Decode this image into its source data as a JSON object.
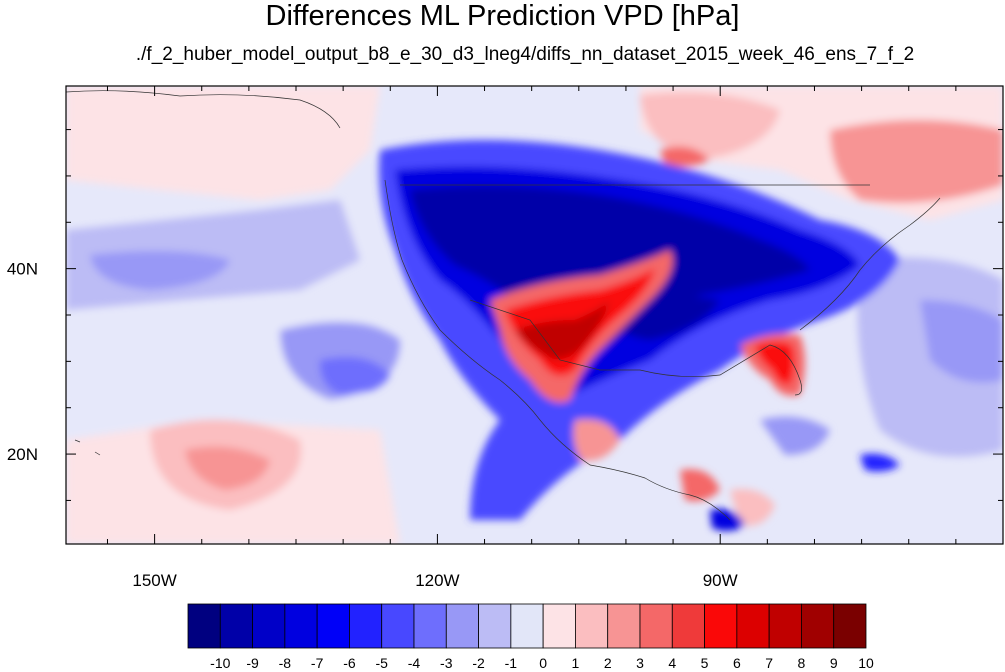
{
  "title": "Differences ML Prediction VPD [hPa]",
  "subtitle": "./f_2_huber_model_output_b8_e_30_d3_lneg4/diffs_nn_dataset_2015_week_46_ens_7_f_2",
  "axes": {
    "lat_ticks": [
      {
        "value": 40,
        "label": "40N"
      },
      {
        "value": 20,
        "label": "20N"
      }
    ],
    "lon_ticks": [
      {
        "value": -150,
        "label": "150W"
      },
      {
        "value": -120,
        "label": "120W"
      },
      {
        "value": -90,
        "label": "90W"
      }
    ],
    "lon_range": [
      -159.4,
      -60.0
    ],
    "lat_range": [
      10.3,
      59.7
    ]
  },
  "colorbar": {
    "labels": [
      "-10",
      "-9",
      "-8",
      "-7",
      "-6",
      "-5",
      "-4",
      "-3",
      "-2",
      "-1",
      "0",
      "1",
      "2",
      "3",
      "4",
      "5",
      "6",
      "7",
      "8",
      "9",
      "10"
    ],
    "colors": [
      "#000080",
      "#0000a8",
      "#0000c8",
      "#0000e0",
      "#0000f8",
      "#2222ff",
      "#4848ff",
      "#6e6efd",
      "#9898f6",
      "#bcbcf5",
      "#e2e6f8",
      "#fde3e6",
      "#fbbec0",
      "#f79494",
      "#f46868",
      "#ef3a3a",
      "#fa0808",
      "#dc0000",
      "#c00000",
      "#a00000",
      "#7a0000"
    ]
  }
}
